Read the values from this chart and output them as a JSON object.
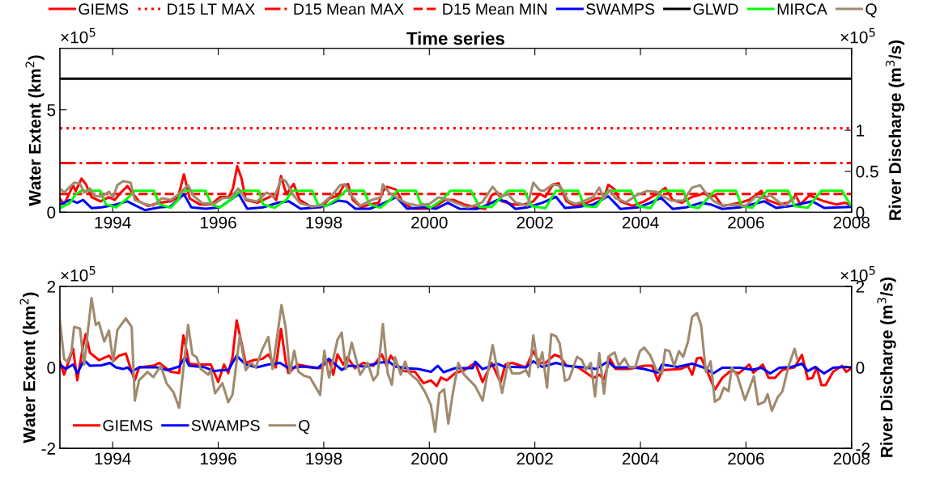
{
  "chart_data": [
    {
      "type": "line",
      "title": "Time series",
      "ylabel": "Water Extent (km$^{2}$)",
      "y2label": "River Discharge (m$^{3}$/s)",
      "annotations": [
        "×10$^{5}$",
        "×10$^{5}$"
      ],
      "legend": "top",
      "xlim": [
        1993,
        2008
      ],
      "xticks": [
        1994,
        1996,
        1998,
        2000,
        2002,
        2004,
        2006,
        2008
      ],
      "ylim": [
        0,
        8
      ],
      "yticks": [
        0,
        5
      ],
      "y2lim": [
        0,
        2
      ],
      "y2ticks": [
        0,
        0.5,
        1
      ],
      "series": [
        {
          "name": "GIEMS",
          "color": "#ff0000",
          "line_style": "solid",
          "x": [
            1993.0,
            1993.08,
            1993.25,
            1993.3,
            1993.41,
            1993.49,
            1993.6,
            1993.77,
            1993.93,
            1994.04,
            1994.15,
            1994.28,
            1994.37,
            1994.5,
            1994.67,
            1994.89,
            1995.1,
            1995.24,
            1995.35,
            1995.46,
            1995.65,
            1995.87,
            1996.03,
            1996.2,
            1996.28,
            1996.36,
            1996.44,
            1996.52,
            1996.74,
            1996.91,
            1997.02,
            1997.1,
            1997.19,
            1997.29,
            1997.43,
            1997.54,
            1997.73,
            1997.95,
            1998.11,
            1998.27,
            1998.38,
            1998.46,
            1998.55,
            1998.71,
            1998.87,
            1999.04,
            1999.12,
            1999.2,
            1999.37,
            1999.5,
            1999.69,
            1999.97,
            2000.13,
            2000.3,
            2000.46,
            2000.66,
            2000.89,
            2001.06,
            2001.18,
            2001.29,
            2001.38,
            2001.57,
            2001.8,
            2001.97,
            2002.09,
            2002.2,
            2002.34,
            2002.45,
            2002.6,
            2002.77,
            2002.99,
            2003.16,
            2003.31,
            2003.39,
            2003.51,
            2003.62,
            2003.85,
            2004.07,
            2004.22,
            2004.36,
            2004.47,
            2004.61,
            2004.78,
            2004.98,
            2005.13,
            2005.21,
            2005.3,
            2005.41,
            2005.55,
            2005.72,
            2005.89,
            2006.06,
            2006.18,
            2006.29,
            2006.4,
            2006.63,
            2006.8,
            2006.94,
            2007.03,
            2007.2,
            2007.34,
            2007.48,
            2007.71,
            2007.88,
            2007.98
          ],
          "values": [
            0.67,
            0.38,
            1.31,
            1.03,
            1.64,
            1.38,
            0.74,
            0.53,
            0.74,
            0.6,
            0.95,
            1.28,
            0.95,
            0.53,
            0.31,
            0.46,
            0.53,
            0.74,
            1.85,
            0.67,
            0.38,
            0.38,
            0.74,
            0.74,
            1.17,
            2.24,
            1.67,
            0.6,
            0.46,
            0.67,
            0.81,
            0.6,
            1.77,
            0.88,
            1.38,
            0.6,
            0.31,
            0.24,
            0.67,
            0.81,
            1.31,
            1.38,
            0.6,
            0.24,
            0.38,
            0.46,
            1.03,
            1.24,
            1.1,
            0.46,
            0.17,
            0.17,
            0.31,
            0.6,
            0.6,
            0.38,
            0.24,
            0.16,
            0.82,
            0.97,
            0.53,
            0.38,
            0.38,
            0.53,
            0.9,
            0.75,
            1.34,
            1.41,
            0.53,
            0.31,
            0.46,
            0.68,
            0.68,
            1.34,
            1.12,
            0.53,
            0.31,
            0.53,
            0.75,
            0.97,
            1.19,
            0.6,
            0.46,
            0.75,
            0.85,
            0.97,
            0.75,
            0.82,
            0.31,
            0.38,
            0.46,
            0.6,
            0.82,
            1.04,
            0.6,
            0.38,
            0.46,
            0.82,
            0.38,
            0.82,
            0.68,
            0.53,
            0.38,
            0.46,
            0.35
          ]
        },
        {
          "name": "D15 LT MAX",
          "color": "#ff0000",
          "line_style": "dotted",
          "x": [
            1993,
            2008
          ],
          "values": [
            4.1,
            4.1
          ]
        },
        {
          "name": "D15 Mean MAX",
          "color": "#ff0000",
          "line_style": "dashdot",
          "x": [
            1993,
            2008
          ],
          "values": [
            2.4,
            2.4
          ]
        },
        {
          "name": "D15 Mean MIN",
          "color": "#ff0000",
          "line_style": "dashed",
          "x": [
            1993,
            2008
          ],
          "values": [
            0.89,
            0.89
          ]
        },
        {
          "name": "SWAMPS",
          "color": "#0000ff",
          "line_style": "solid",
          "x": [
            1993.0,
            1993.19,
            1993.33,
            1993.44,
            1993.6,
            1993.79,
            1994.07,
            1994.28,
            1994.39,
            1994.61,
            1994.89,
            1995.1,
            1995.35,
            1995.49,
            1995.76,
            1996.03,
            1996.31,
            1996.39,
            1996.55,
            1996.85,
            1997.13,
            1997.34,
            1997.56,
            1997.89,
            1998.11,
            1998.27,
            1998.44,
            1998.6,
            1998.87,
            1999.09,
            1999.37,
            1999.58,
            1999.91,
            2000.13,
            2000.35,
            2000.57,
            2000.89,
            2001.12,
            2001.29,
            2001.46,
            2001.63,
            2001.86,
            2002.14,
            2002.4,
            2002.57,
            2002.82,
            2003.11,
            2003.39,
            2003.62,
            2003.96,
            2004.19,
            2004.39,
            2004.61,
            2004.87,
            2005.15,
            2005.33,
            2005.55,
            2005.89,
            2006.35,
            2006.57,
            2006.86,
            2007.26,
            2007.48,
            2007.77,
            2007.98
          ],
          "values": [
            0.38,
            0.6,
            0.46,
            0.6,
            0.2,
            0.24,
            0.38,
            0.53,
            0.38,
            0.1,
            0.24,
            0.28,
            0.88,
            0.24,
            0.17,
            0.24,
            0.74,
            0.88,
            0.17,
            0.24,
            0.46,
            0.53,
            0.17,
            0.24,
            0.38,
            0.57,
            0.5,
            0.17,
            0.17,
            0.38,
            0.74,
            0.17,
            0.24,
            0.17,
            0.46,
            0.17,
            0.16,
            0.38,
            0.6,
            0.53,
            0.16,
            0.24,
            0.46,
            0.75,
            0.21,
            0.26,
            0.38,
            0.78,
            0.16,
            0.24,
            0.46,
            0.71,
            0.16,
            0.24,
            0.46,
            0.38,
            0.16,
            0.24,
            0.53,
            0.21,
            0.31,
            0.53,
            0.21,
            0.24,
            0.26
          ]
        },
        {
          "name": "GLWD",
          "color": "#000000",
          "line_style": "solid",
          "x": [
            1993,
            2008
          ],
          "values": [
            6.52,
            6.52
          ]
        },
        {
          "name": "MIRCA",
          "color": "#00ff00",
          "line_style": "solid",
          "x": [
            1993.0,
            1993.19,
            1993.3,
            1993.41,
            1993.77,
            1993.87,
            1994.07,
            1994.28,
            1994.42,
            1994.78,
            1994.89,
            1995.1,
            1995.24,
            1995.32,
            1995.76,
            1995.87,
            1996.03,
            1996.3,
            1996.42,
            1996.77,
            1996.85,
            1997.07,
            1997.29,
            1997.4,
            1997.78,
            1997.89,
            1998.05,
            1998.27,
            1998.41,
            1998.76,
            1998.87,
            1999.07,
            1999.26,
            1999.39,
            1999.75,
            1999.83,
            2000.02,
            2000.24,
            2000.4,
            2000.79,
            2000.95,
            2001.18,
            2001.49,
            2001.8,
            2001.94,
            2002.2,
            2002.4,
            2002.82,
            2002.94,
            2003.16,
            2003.39,
            2003.82,
            2003.96,
            2004.19,
            2004.41,
            2004.81,
            2004.93,
            2005.1,
            2005.41,
            2005.81,
            2005.92,
            2006.12,
            2006.4,
            2006.8,
            2006.92,
            2007.17,
            2007.43,
            2007.82,
            2007.98
          ],
          "values": [
            0.2,
            0.45,
            0.88,
            1.05,
            1.05,
            0.38,
            0.24,
            0.67,
            1.05,
            1.05,
            0.38,
            0.22,
            0.6,
            1.05,
            1.05,
            0.38,
            0.22,
            0.74,
            1.05,
            1.05,
            0.38,
            0.22,
            0.6,
            1.05,
            1.05,
            0.38,
            0.31,
            0.67,
            1.05,
            1.05,
            0.38,
            0.22,
            0.6,
            1.05,
            1.05,
            0.45,
            0.22,
            0.6,
            1.05,
            1.05,
            0.26,
            0.26,
            1.05,
            1.05,
            0.3,
            0.2,
            1.05,
            1.05,
            0.3,
            0.26,
            1.05,
            1.05,
            0.3,
            0.2,
            1.05,
            1.05,
            0.3,
            0.2,
            1.05,
            1.05,
            0.3,
            0.22,
            1.05,
            1.05,
            0.3,
            0.22,
            1.05,
            1.05,
            0.35
          ]
        },
        {
          "name": "Q",
          "color": "#a08a6e",
          "line_style": "solid",
          "axis": "y2",
          "x": [
            1993.0,
            1993.08,
            1993.27,
            1993.38,
            1993.46,
            1993.57,
            1993.65,
            1993.79,
            1993.93,
            1994.01,
            1994.09,
            1994.2,
            1994.34,
            1994.42,
            1994.61,
            1994.77,
            1994.93,
            1995.1,
            1995.21,
            1995.43,
            1995.53,
            1995.7,
            1995.92,
            1996.08,
            1996.24,
            1996.38,
            1996.52,
            1996.73,
            1996.92,
            1997.06,
            1997.2,
            1997.28,
            1997.41,
            1997.55,
            1997.77,
            1997.93,
            1998.15,
            1998.31,
            1998.4,
            1998.53,
            1998.69,
            1998.91,
            1999.08,
            1999.12,
            1999.24,
            1999.4,
            1999.57,
            1999.78,
            2000.0,
            2000.17,
            2000.28,
            2000.44,
            2000.72,
            2000.89,
            2001.0,
            2001.2,
            2001.35,
            2001.49,
            2001.63,
            2001.86,
            2001.97,
            2002.09,
            2002.17,
            2002.34,
            2002.48,
            2002.63,
            2002.77,
            2002.94,
            2003.11,
            2003.22,
            2003.31,
            2003.42,
            2003.53,
            2003.73,
            2003.93,
            2004.13,
            2004.3,
            2004.41,
            2004.59,
            2004.81,
            2004.98,
            2005.13,
            2005.21,
            2005.38,
            2005.55,
            2005.78,
            2006.0,
            2006.18,
            2006.35,
            2006.46,
            2006.63,
            2006.74,
            2006.94
          ],
          "values": [
            0.29,
            0.24,
            0.36,
            0.35,
            0.24,
            0.29,
            0.2,
            0.19,
            0.25,
            0.18,
            0.33,
            0.38,
            0.36,
            0.15,
            0.1,
            0.08,
            0.17,
            0.15,
            0.2,
            0.33,
            0.2,
            0.11,
            0.1,
            0.17,
            0.18,
            0.29,
            0.16,
            0.13,
            0.24,
            0.18,
            0.41,
            0.38,
            0.22,
            0.11,
            0.07,
            0.08,
            0.2,
            0.33,
            0.34,
            0.2,
            0.08,
            0.15,
            0.18,
            0.34,
            0.24,
            0.17,
            0.11,
            0.08,
            0.1,
            0.18,
            0.17,
            0.13,
            0.06,
            0.09,
            0.12,
            0.31,
            0.19,
            0.22,
            0.12,
            0.08,
            0.36,
            0.27,
            0.26,
            0.34,
            0.32,
            0.14,
            0.1,
            0.14,
            0.19,
            0.3,
            0.17,
            0.27,
            0.17,
            0.12,
            0.21,
            0.26,
            0.25,
            0.2,
            0.14,
            0.14,
            0.3,
            0.33,
            0.26,
            0.14,
            0.08,
            0.09,
            0.08,
            0.19,
            0.17,
            0.21,
            0.12,
            0.08,
            0.18
          ]
        }
      ]
    },
    {
      "type": "line",
      "ylabel": "Water Extent (km$^{2}$)",
      "y2label": "River Discharge (m$^{3}$/s)",
      "annotations": [
        "×10$^{5}$",
        "×10$^{5}$"
      ],
      "legend": "bottom left",
      "xlim": [
        1993,
        2008
      ],
      "xticks": [
        1994,
        1996,
        1998,
        2000,
        2002,
        2004,
        2006,
        2008
      ],
      "ylim": [
        -2,
        2
      ],
      "yticks": [
        -2,
        0,
        2
      ],
      "y2lim": [
        -2,
        2
      ],
      "y2ticks": [
        -2,
        0,
        2
      ],
      "series": [
        {
          "name": "GIEMS",
          "color": "#ff0000",
          "line_style": "solid",
          "x": [
            1993.0,
            1993.08,
            1993.25,
            1993.33,
            1993.44,
            1993.49,
            1993.57,
            1993.74,
            1993.93,
            1994.01,
            1994.12,
            1994.25,
            1994.36,
            1994.42,
            1994.5,
            1994.77,
            1994.88,
            1995.1,
            1995.26,
            1995.34,
            1995.45,
            1995.59,
            1995.86,
            1996.0,
            1996.11,
            1996.19,
            1996.27,
            1996.35,
            1996.43,
            1996.52,
            1996.68,
            1996.84,
            1996.95,
            1997.09,
            1997.19,
            1997.28,
            1997.33,
            1997.5,
            1997.71,
            1997.93,
            1998.1,
            1998.18,
            1998.26,
            1998.37,
            1998.45,
            1998.59,
            1998.75,
            1998.94,
            1999.1,
            1999.19,
            1999.27,
            1999.43,
            1999.51,
            1999.73,
            1999.89,
            2000.03,
            2000.14,
            2000.22,
            2000.33,
            2000.49,
            2000.66,
            2000.87,
            2001.01,
            2001.18,
            2001.35,
            2001.44,
            2001.57,
            2001.83,
            2001.97,
            2002.09,
            2002.2,
            2002.37,
            2002.48,
            2002.6,
            2002.82,
            2003.11,
            2003.22,
            2003.31,
            2003.42,
            2003.53,
            2003.79,
            2004.07,
            2004.22,
            2004.33,
            2004.41,
            2004.76,
            2004.9,
            2004.98,
            2005.07,
            2005.15,
            2005.27,
            2005.41,
            2005.55,
            2005.72,
            2005.86,
            2006.06,
            2006.14,
            2006.32,
            2006.43,
            2006.55,
            2006.69,
            2006.92,
            2007.06,
            2007.17,
            2007.26,
            2007.34,
            2007.43,
            2007.51,
            2007.65,
            2007.82,
            2007.9,
            2007.98
          ],
          "values": [
            0.14,
            -0.18,
            0.46,
            -0.32,
            0.54,
            0.82,
            0.36,
            0.18,
            0.29,
            0.16,
            0.29,
            0.34,
            -0.11,
            -0.32,
            0,
            0.04,
            0.11,
            -0.11,
            -0.14,
            0.79,
            0.09,
            0.07,
            0.07,
            -0.36,
            0.07,
            -0.14,
            0.25,
            1.16,
            0.68,
            0.11,
            0.18,
            0.21,
            0.32,
            0,
            0.95,
            0.14,
            -0.14,
            0.07,
            0.02,
            -0.02,
            0.18,
            -0.18,
            0.32,
            0.07,
            0.25,
            -0.02,
            0.11,
            0.04,
            0.32,
            0.04,
            0.29,
            0,
            -0.09,
            -0.11,
            -0.39,
            -0.32,
            -0.46,
            -0.25,
            -0.32,
            -0.14,
            -0.07,
            0.11,
            -0.36,
            0.11,
            -0.37,
            0.07,
            0.11,
            0,
            0.4,
            0.11,
            0.11,
            0.31,
            0.26,
            0.04,
            0,
            -0.26,
            -0.18,
            -0.29,
            0.22,
            -0.04,
            -0.04,
            0.04,
            0.04,
            -0.33,
            -0.07,
            -0.04,
            0.04,
            -0.18,
            0.22,
            0.24,
            -0.11,
            -0.55,
            -0.26,
            -0.07,
            -0.15,
            0.07,
            -0.13,
            0.07,
            -0.26,
            -0.26,
            -0.06,
            0,
            0.31,
            -0.29,
            -0.26,
            0,
            -0.44,
            -0.44,
            -0.11,
            0.04,
            -0.11,
            -0.04
          ]
        },
        {
          "name": "SWAMPS",
          "color": "#0000ff",
          "line_style": "solid",
          "x": [
            1993.0,
            1993.11,
            1993.25,
            1993.33,
            1993.46,
            1993.57,
            1993.79,
            1993.95,
            1994.06,
            1994.2,
            1994.28,
            1994.36,
            1994.5,
            1994.83,
            1995.04,
            1995.26,
            1995.37,
            1995.45,
            1995.75,
            1995.92,
            1996.08,
            1996.19,
            1996.35,
            1996.52,
            1996.73,
            1996.95,
            1997.17,
            1997.33,
            1997.6,
            1997.88,
            1998.1,
            1998.34,
            1998.47,
            1998.8,
            1999.02,
            1999.24,
            1999.35,
            1999.57,
            1999.79,
            2000.03,
            2000.16,
            2000.27,
            2000.49,
            2000.82,
            2000.87,
            2001.01,
            2001.29,
            2001.44,
            2001.57,
            2001.83,
            2001.97,
            2002.14,
            2002.4,
            2002.6,
            2002.99,
            2003.16,
            2003.39,
            2003.51,
            2003.85,
            2004.07,
            2004.33,
            2004.41,
            2004.7,
            2004.98,
            2005.21,
            2005.38,
            2005.55,
            2005.89,
            2006.12,
            2006.29,
            2006.46,
            2006.63,
            2006.86,
            2007.06,
            2007.17,
            2007.31,
            2007.48,
            2007.65,
            2007.88,
            2007.98
          ],
          "values": [
            0.07,
            -0.04,
            0.07,
            -0.14,
            0.18,
            0.04,
            0.05,
            0.11,
            0,
            -0.04,
            0,
            -0.11,
            0,
            0,
            -0.07,
            0.02,
            0.25,
            0.04,
            0,
            -0.09,
            -0.07,
            -0.07,
            0.29,
            0.07,
            0,
            0.07,
            0.11,
            -0.02,
            0.02,
            -0.02,
            0.21,
            -0.06,
            0.04,
            0.02,
            0.11,
            0.14,
            0.02,
            -0.02,
            -0.04,
            -0.11,
            0.04,
            -0.12,
            -0.02,
            -0.02,
            0.14,
            -0.04,
            0.09,
            0.01,
            0.01,
            0,
            0.15,
            0.01,
            0.11,
            0.04,
            -0.01,
            -0.04,
            0.15,
            0,
            0,
            -0.04,
            -0.13,
            0.07,
            0.01,
            0.09,
            -0.01,
            -0.15,
            -0.01,
            -0.01,
            -0.06,
            -0.01,
            -0.15,
            -0.01,
            0.01,
            0.09,
            -0.09,
            0.01,
            -0.15,
            -0.01,
            0.01,
            0
          ]
        },
        {
          "name": "Q",
          "color": "#a08a6e",
          "line_style": "solid",
          "axis": "y2",
          "x": [
            1993.0,
            1993.08,
            1993.14,
            1993.22,
            1993.27,
            1993.38,
            1993.46,
            1993.6,
            1993.68,
            1993.74,
            1993.84,
            1993.93,
            1994.01,
            1994.09,
            1994.25,
            1994.36,
            1994.42,
            1994.5,
            1994.66,
            1994.77,
            1994.91,
            1995.02,
            1995.15,
            1995.26,
            1995.43,
            1995.51,
            1995.59,
            1995.67,
            1995.81,
            1995.86,
            1995.94,
            1996.08,
            1996.19,
            1996.27,
            1996.41,
            1996.52,
            1996.62,
            1996.71,
            1996.84,
            1996.95,
            1997.03,
            1997.2,
            1997.28,
            1997.36,
            1997.44,
            1997.52,
            1997.63,
            1997.74,
            1997.93,
            1998.01,
            1998.1,
            1998.26,
            1998.34,
            1998.42,
            1998.53,
            1998.69,
            1998.83,
            1998.94,
            1999.02,
            1999.12,
            1999.21,
            1999.29,
            1999.35,
            1999.46,
            1999.54,
            1999.62,
            1999.78,
            1999.92,
            2000.03,
            2000.11,
            2000.19,
            2000.28,
            2000.36,
            2000.44,
            2000.55,
            2000.66,
            2000.87,
            2001.01,
            2001.2,
            2001.28,
            2001.38,
            2001.49,
            2001.57,
            2001.71,
            2001.83,
            2001.89,
            2001.97,
            2002.06,
            2002.14,
            2002.23,
            2002.31,
            2002.4,
            2002.47,
            2002.57,
            2002.65,
            2002.8,
            2002.89,
            2002.97,
            2003.06,
            2003.14,
            2003.22,
            2003.31,
            2003.39,
            2003.51,
            2003.59,
            2003.7,
            2003.79,
            2003.9,
            2003.99,
            2004.07,
            2004.19,
            2004.3,
            2004.41,
            2004.47,
            2004.55,
            2004.64,
            2004.73,
            2004.81,
            2004.9,
            2004.98,
            2005.07,
            2005.15,
            2005.24,
            2005.33,
            2005.41,
            2005.5,
            2005.58,
            2005.67,
            2005.73,
            2005.84,
            2005.98,
            2006.15,
            2006.23,
            2006.35,
            2006.41,
            2006.49,
            2006.6,
            2006.69,
            2006.8,
            2006.92,
            2006.97
          ],
          "values": [
            1.16,
            0.21,
            0.14,
            0.39,
            1.0,
            0.96,
            0.07,
            1.71,
            1.05,
            1.11,
            0.64,
            0.91,
            0.14,
            0.93,
            1.21,
            1.0,
            -0.82,
            -0.32,
            -0.11,
            -0.24,
            0.04,
            -0.39,
            -0.61,
            -1.0,
            1.05,
            0.32,
            0.25,
            -0.04,
            -0.18,
            -0.07,
            -0.64,
            -0.39,
            -0.86,
            -0.68,
            0.79,
            -0.07,
            0.12,
            0,
            0.46,
            0.75,
            -0.04,
            1.54,
            0.96,
            -0.14,
            0.41,
            -0.11,
            -0.21,
            -0.25,
            -0.68,
            0.41,
            -0.25,
            0.68,
            0.86,
            -0.04,
            0.61,
            -0.18,
            0.11,
            -0.32,
            -0.18,
            1.07,
            -0.14,
            -0.43,
            0.25,
            -0.18,
            0.14,
            -0.14,
            -0.32,
            -0.61,
            -0.93,
            -1.59,
            -0.64,
            -0.54,
            -1.39,
            -0.68,
            0.11,
            -0.18,
            -0.46,
            -0.82,
            0.55,
            0,
            -0.63,
            0.11,
            -0.15,
            -0.15,
            -0.07,
            -0.22,
            0.79,
            0,
            0.37,
            -0.5,
            0.82,
            0.77,
            0.59,
            -0.33,
            -0.28,
            0.26,
            0.18,
            -0.06,
            0.11,
            -0.72,
            0.35,
            -0.65,
            0.26,
            0.37,
            0.04,
            0.22,
            0,
            0,
            0.4,
            0.49,
            0.29,
            -0.06,
            -0.15,
            0.44,
            0.4,
            0.04,
            0.4,
            0.26,
            0.63,
            1.25,
            1.34,
            1.04,
            -0.11,
            0.15,
            -0.85,
            -0.77,
            -0.5,
            -0.59,
            0,
            -0.22,
            -0.81,
            -0.22,
            -0.92,
            -0.85,
            -0.66,
            -1.07,
            -0.74,
            -0.59,
            0,
            0.46,
            0.22
          ]
        }
      ]
    }
  ]
}
